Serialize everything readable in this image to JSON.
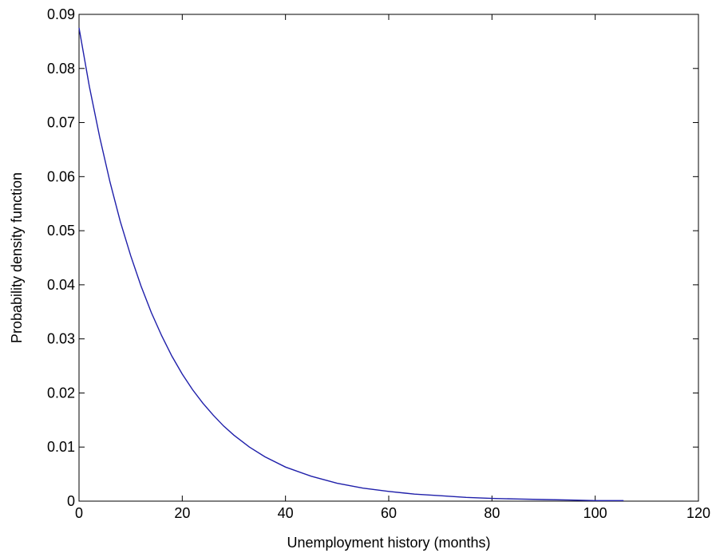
{
  "chart_data": {
    "type": "line",
    "title": "",
    "xlabel": "Unemployment history (months)",
    "ylabel": "Probability density function",
    "xlim": [
      0,
      120
    ],
    "ylim": [
      0,
      0.09
    ],
    "xticks": [
      0,
      20,
      40,
      60,
      80,
      100,
      120
    ],
    "xtick_labels": [
      "0",
      "20",
      "40",
      "60",
      "80",
      "100",
      "120"
    ],
    "yticks": [
      0,
      0.01,
      0.02,
      0.03,
      0.04,
      0.05,
      0.06,
      0.07,
      0.08,
      0.09
    ],
    "ytick_labels": [
      "0",
      "0.01",
      "0.02",
      "0.03",
      "0.04",
      "0.05",
      "0.06",
      "0.07",
      "0.08",
      "0.09"
    ],
    "grid": false,
    "legend": "none",
    "series": [
      {
        "color": "#1f1faa",
        "x": [
          0,
          2,
          4,
          6,
          8,
          10,
          12,
          14,
          16,
          18,
          20,
          22,
          24,
          26,
          28,
          30,
          33,
          36,
          40,
          45,
          50,
          55,
          60,
          65,
          70,
          75,
          80,
          85,
          90,
          95,
          100,
          105.5
        ],
        "y": [
          0.0875,
          0.0767,
          0.0673,
          0.059,
          0.0517,
          0.0454,
          0.0398,
          0.0349,
          0.0306,
          0.0268,
          0.0235,
          0.0206,
          0.0181,
          0.0159,
          0.0139,
          0.0122,
          0.01,
          0.0082,
          0.0063,
          0.0046,
          0.0033,
          0.0024,
          0.0018,
          0.0013,
          0.001,
          0.0007,
          0.0005,
          0.0004,
          0.0003,
          0.0002,
          0.0001,
          0.0001
        ]
      }
    ]
  }
}
